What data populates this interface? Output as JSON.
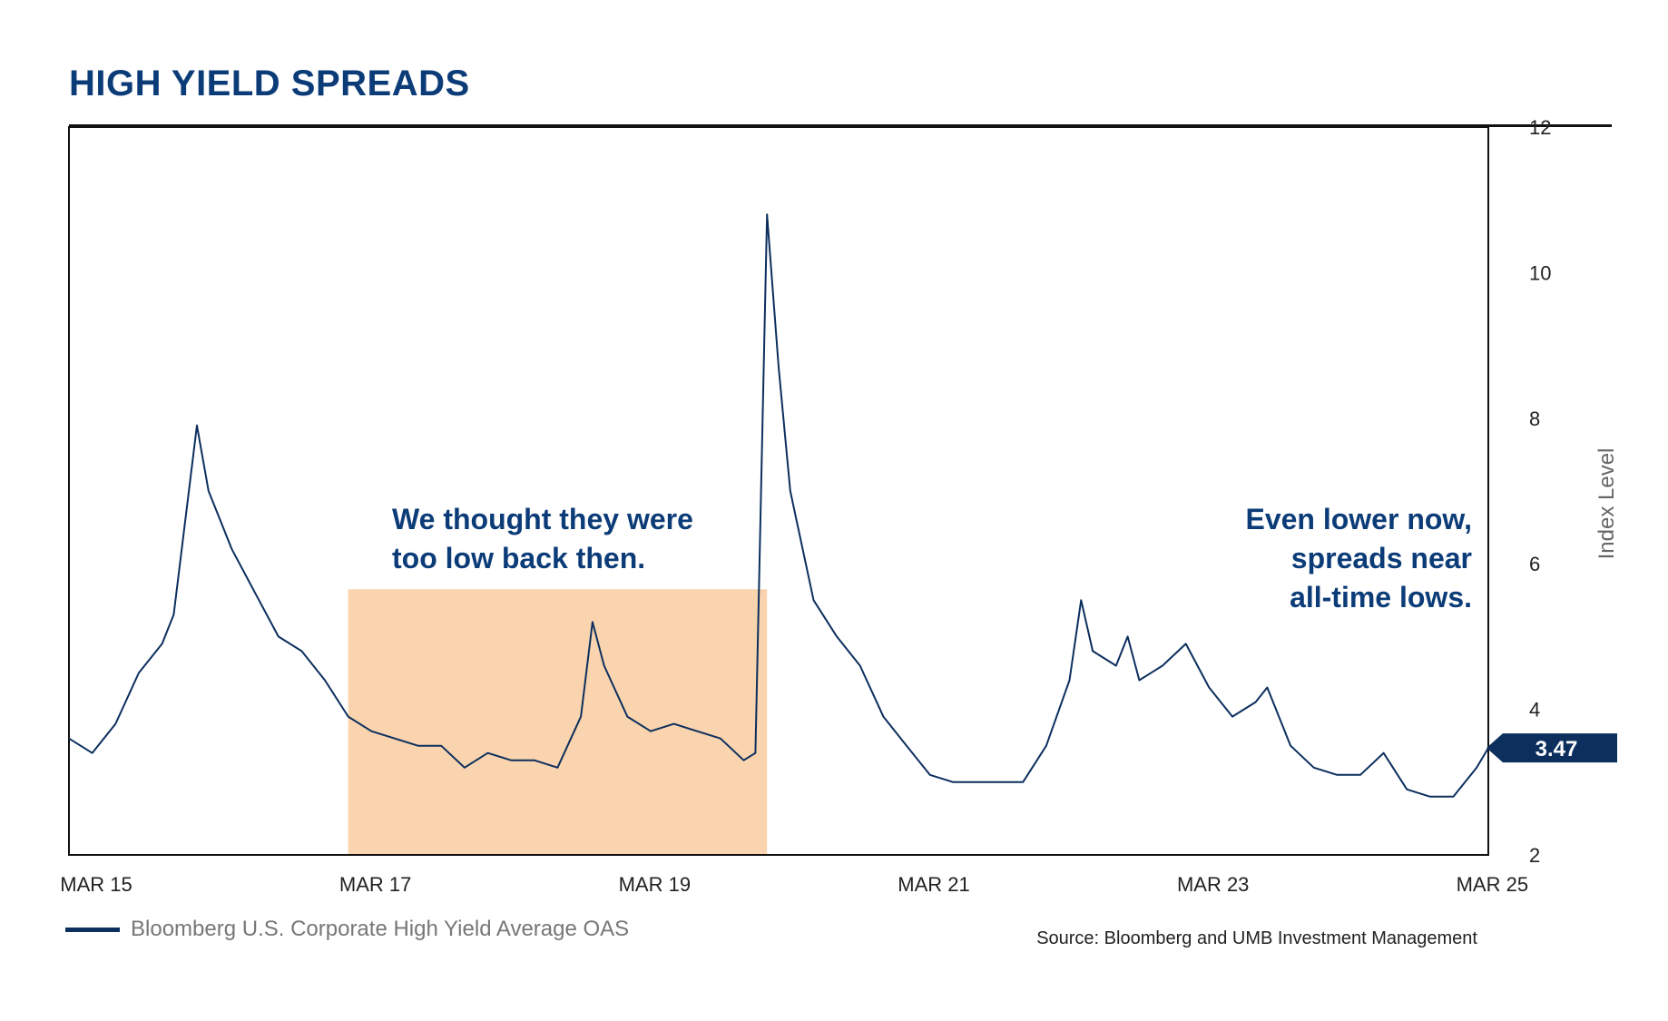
{
  "title": "HIGH YIELD SPREADS",
  "colors": {
    "line": "#0c2f5e",
    "title": "#0c3c78",
    "highlight": "#fad4ae",
    "badge": "#0c2f5e"
  },
  "chart_data": {
    "type": "line",
    "ylabel": "Index Level",
    "ylim": [
      2,
      12
    ],
    "yticks": [
      "12",
      "10",
      "8",
      "6",
      "4",
      "2"
    ],
    "xlim": [
      "2015-03",
      "2025-05"
    ],
    "xticks": [
      "MAR 15",
      "MAR 17",
      "MAR 19",
      "MAR 21",
      "MAR 23",
      "MAR 25"
    ],
    "grid": false,
    "legend_position": "bottom-left",
    "series": [
      {
        "name": "Bloomberg U.S. Corporate High Yield Average OAS",
        "x": [
          "2015-03",
          "2015-05",
          "2015-07",
          "2015-09",
          "2015-11",
          "2015-12",
          "2016-02",
          "2016-03",
          "2016-05",
          "2016-07",
          "2016-09",
          "2016-11",
          "2017-01",
          "2017-03",
          "2017-05",
          "2017-07",
          "2017-09",
          "2017-11",
          "2018-01",
          "2018-03",
          "2018-05",
          "2018-07",
          "2018-09",
          "2018-11",
          "2018-12",
          "2019-01",
          "2019-03",
          "2019-05",
          "2019-07",
          "2019-09",
          "2019-11",
          "2020-01",
          "2020-02",
          "2020-03",
          "2020-04",
          "2020-05",
          "2020-07",
          "2020-09",
          "2020-11",
          "2021-01",
          "2021-03",
          "2021-05",
          "2021-07",
          "2021-09",
          "2021-11",
          "2022-01",
          "2022-03",
          "2022-05",
          "2022-06",
          "2022-07",
          "2022-09",
          "2022-10",
          "2022-11",
          "2023-01",
          "2023-03",
          "2023-05",
          "2023-07",
          "2023-09",
          "2023-10",
          "2023-12",
          "2024-02",
          "2024-04",
          "2024-06",
          "2024-08",
          "2024-10",
          "2024-12",
          "2025-02",
          "2025-04",
          "2025-05"
        ],
        "values": [
          3.6,
          3.4,
          3.8,
          4.5,
          4.9,
          5.3,
          7.9,
          7.0,
          6.2,
          5.6,
          5.0,
          4.8,
          4.4,
          3.9,
          3.7,
          3.6,
          3.5,
          3.5,
          3.2,
          3.4,
          3.3,
          3.3,
          3.2,
          3.9,
          5.2,
          4.6,
          3.9,
          3.7,
          3.8,
          3.7,
          3.6,
          3.3,
          3.4,
          10.8,
          8.7,
          7.0,
          5.5,
          5.0,
          4.6,
          3.9,
          3.5,
          3.1,
          3.0,
          3.0,
          3.0,
          3.0,
          3.5,
          4.4,
          5.5,
          4.8,
          4.6,
          5.0,
          4.4,
          4.6,
          4.9,
          4.3,
          3.9,
          4.1,
          4.3,
          3.5,
          3.2,
          3.1,
          3.1,
          3.4,
          2.9,
          2.8,
          2.8,
          3.2,
          3.47
        ]
      }
    ],
    "highlight_region": {
      "x_start": "2017-03",
      "x_end": "2020-03"
    },
    "current_value_label": "3.47",
    "annotations": [
      {
        "lines": [
          "We thought they were",
          "too low back then."
        ]
      },
      {
        "lines": [
          "Even lower now,",
          "spreads near",
          "all-time lows."
        ]
      }
    ]
  },
  "legend": {
    "label": "Bloomberg U.S. Corporate High Yield Average OAS"
  },
  "source": "Source: Bloomberg and UMB Investment Management"
}
